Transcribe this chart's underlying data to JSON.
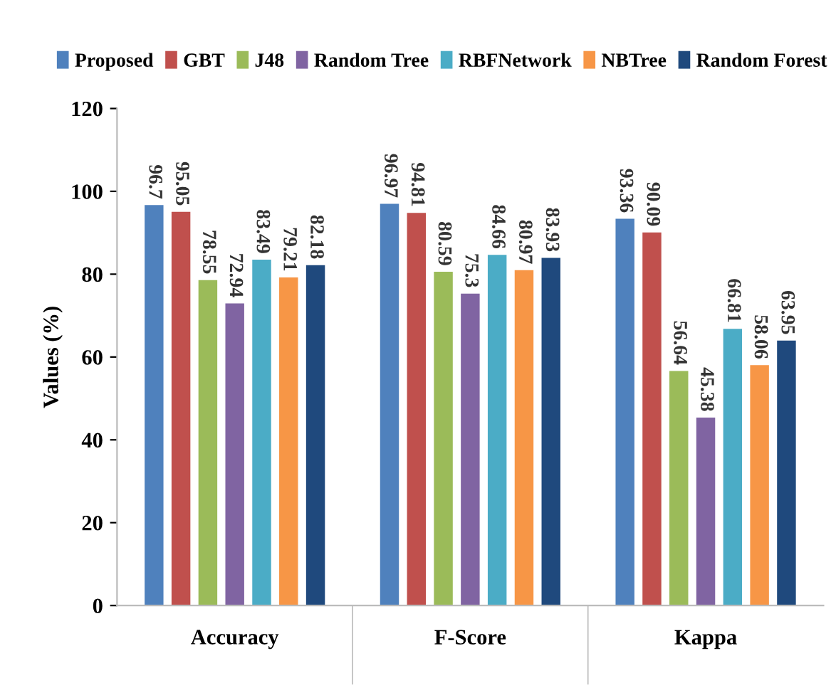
{
  "chart_data": {
    "type": "bar",
    "ylabel": "Values (%)",
    "categories": [
      "Accuracy",
      "F-Score",
      "Kappa"
    ],
    "series": [
      {
        "name": "Proposed",
        "color": "#4f81bd",
        "values": [
          96.7,
          96.97,
          93.36
        ]
      },
      {
        "name": "GBT",
        "color": "#c0504d",
        "values": [
          95.05,
          94.81,
          90.09
        ]
      },
      {
        "name": "J48",
        "color": "#9bbb59",
        "values": [
          78.55,
          80.59,
          56.64
        ]
      },
      {
        "name": "Random Tree",
        "color": "#8064a2",
        "values": [
          72.94,
          75.3,
          45.38
        ]
      },
      {
        "name": "RBFNetwork",
        "color": "#4bacc6",
        "values": [
          83.49,
          84.66,
          66.81
        ]
      },
      {
        "name": "NBTree",
        "color": "#f79646",
        "values": [
          79.21,
          80.97,
          58.06
        ]
      },
      {
        "name": "Random Forest",
        "color": "#1f497d",
        "values": [
          82.18,
          83.93,
          63.95
        ]
      }
    ],
    "ylim": [
      0,
      120
    ],
    "yticks": [
      0,
      20,
      40,
      60,
      80,
      100,
      120
    ],
    "data_labels": true,
    "legend": "top",
    "grid": false
  }
}
